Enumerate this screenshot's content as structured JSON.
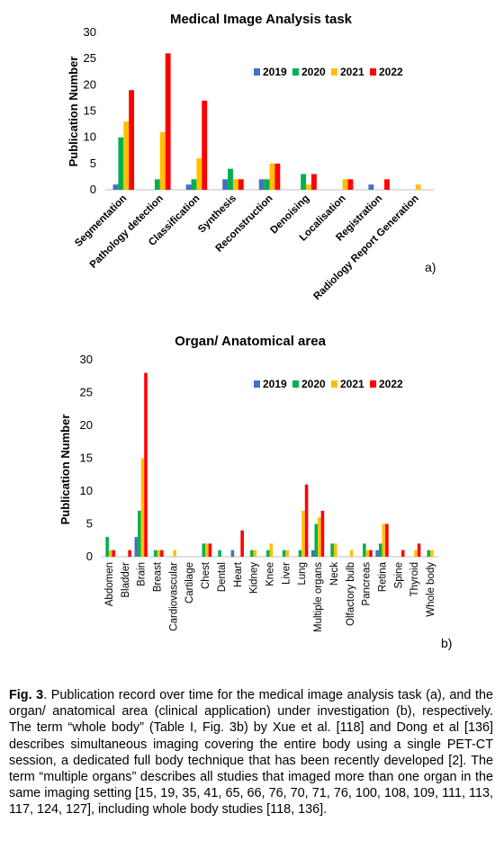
{
  "colors": {
    "2019": "#4472C4",
    "2020": "#00B050",
    "2021": "#FFC000",
    "2022": "#FF0000"
  },
  "chart_data": [
    {
      "type": "bar",
      "title": "Medical Image Analysis task",
      "ylabel": "Publication Number",
      "xlabel": "",
      "ylim": [
        0,
        30
      ],
      "yticks": [
        0,
        5,
        10,
        15,
        20,
        25,
        30
      ],
      "grid": false,
      "legend": "top-right",
      "panel_label": "a)",
      "categories": [
        "Segmentation",
        "Pathology detection",
        "Classification",
        "Synthesis",
        "Reconstruction",
        "Denoising",
        "Localisation",
        "Registration",
        "Radiology Report Generation"
      ],
      "series": [
        {
          "name": "2019",
          "values": [
            1,
            0,
            1,
            2,
            2,
            0,
            0,
            1,
            0
          ]
        },
        {
          "name": "2020",
          "values": [
            10,
            2,
            2,
            4,
            2,
            3,
            0,
            0,
            0
          ]
        },
        {
          "name": "2021",
          "values": [
            13,
            11,
            6,
            2,
            5,
            1,
            2,
            0,
            1
          ]
        },
        {
          "name": "2022",
          "values": [
            19,
            26,
            17,
            2,
            5,
            3,
            2,
            2,
            0
          ]
        }
      ]
    },
    {
      "type": "bar",
      "title": "Organ/ Anatomical area",
      "ylabel": "Publication Number",
      "xlabel": "",
      "ylim": [
        0,
        30
      ],
      "yticks": [
        0,
        5,
        10,
        15,
        20,
        25,
        30
      ],
      "grid": false,
      "legend": "top-right",
      "panel_label": "b)",
      "categories": [
        "Abdomen",
        "Bladder",
        "Brain",
        "Breast",
        "Cardiovascular",
        "Cartilage",
        "Chest",
        "Dental",
        "Heart",
        "Kidney",
        "Knee",
        "Liver",
        "Lung",
        "Multiple organs",
        "Neck",
        "Olfactory bulb",
        "Pancreas",
        "Retina",
        "Spine",
        "Thyroid",
        "Whole body"
      ],
      "series": [
        {
          "name": "2019",
          "values": [
            0,
            0,
            3,
            0,
            0,
            0,
            0,
            0,
            1,
            0,
            0,
            0,
            0,
            1,
            0,
            0,
            0,
            1,
            0,
            0,
            0
          ]
        },
        {
          "name": "2020",
          "values": [
            3,
            0,
            7,
            1,
            0,
            0,
            2,
            1,
            0,
            1,
            1,
            1,
            1,
            5,
            2,
            0,
            2,
            2,
            0,
            0,
            1
          ]
        },
        {
          "name": "2021",
          "values": [
            1,
            0,
            15,
            1,
            1,
            0,
            2,
            0,
            0,
            1,
            2,
            1,
            7,
            6,
            2,
            1,
            1,
            5,
            0,
            1,
            1
          ]
        },
        {
          "name": "2022",
          "values": [
            1,
            1,
            28,
            1,
            0,
            0,
            2,
            0,
            4,
            0,
            0,
            0,
            11,
            7,
            0,
            0,
            1,
            5,
            1,
            2,
            0
          ]
        }
      ]
    }
  ],
  "caption": {
    "label": "Fig. 3",
    "text": ". Publication record over time for the medical image analysis task (a), and the organ/ anatomical area (clinical application) under investigation (b), respectively. The term “whole body” (Table I, Fig. 3b) by Xue et al. [118] and Dong et al [136] describes simultaneous imaging covering the entire body using a single PET-CT session, a dedicated full body technique that has been recently developed [2]. The term “multiple organs” describes all studies that imaged more than one organ in the same imaging setting [15, 19, 35, 41, 65, 66, 76, 70, 71, 76, 100, 108, 109, 111, 113, 117, 124, 127], including whole body studies [118, 136]."
  }
}
